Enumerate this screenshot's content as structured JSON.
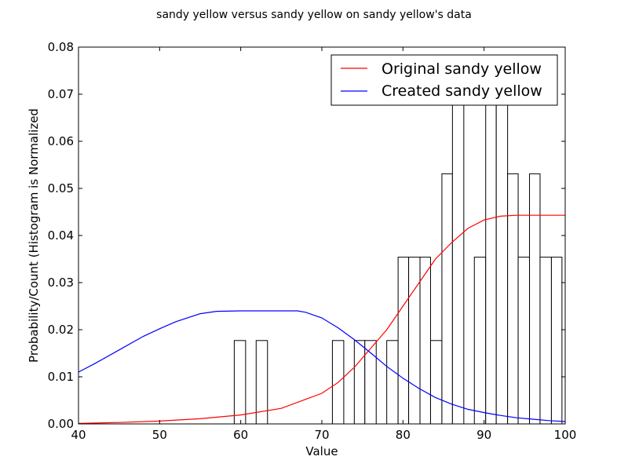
{
  "chart_data": {
    "type": "histogram+line",
    "title": "sandy yellow versus sandy yellow on sandy yellow's data",
    "xlabel": "Value",
    "ylabel": "Probability/Count (Histogram is Normalized",
    "xlim": [
      40,
      100
    ],
    "ylim": [
      0,
      0.08
    ],
    "x_ticks": [
      "40",
      "50",
      "60",
      "70",
      "80",
      "90",
      "100"
    ],
    "y_ticks": [
      "0.00",
      "0.01",
      "0.02",
      "0.03",
      "0.04",
      "0.05",
      "0.06",
      "0.07",
      "0.08"
    ],
    "grid": false,
    "legend_position": "top-right",
    "histogram": {
      "name": "histogram",
      "color": "#000000",
      "fill": "#ffffff",
      "bins": [
        {
          "x0": 59.2,
          "x1": 60.6,
          "value": 0.0177
        },
        {
          "x0": 61.9,
          "x1": 63.3,
          "value": 0.0177
        },
        {
          "x0": 71.3,
          "x1": 72.7,
          "value": 0.0177
        },
        {
          "x0": 74.0,
          "x1": 75.3,
          "value": 0.0177
        },
        {
          "x0": 75.3,
          "x1": 76.7,
          "value": 0.0177
        },
        {
          "x0": 78.0,
          "x1": 79.4,
          "value": 0.0177
        },
        {
          "x0": 79.4,
          "x1": 80.7,
          "value": 0.0354
        },
        {
          "x0": 80.7,
          "x1": 82.1,
          "value": 0.0354
        },
        {
          "x0": 82.1,
          "x1": 83.4,
          "value": 0.0354
        },
        {
          "x0": 83.4,
          "x1": 84.8,
          "value": 0.0177
        },
        {
          "x0": 84.8,
          "x1": 86.1,
          "value": 0.0531
        },
        {
          "x0": 86.1,
          "x1": 87.5,
          "value": 0.0708
        },
        {
          "x0": 88.8,
          "x1": 90.2,
          "value": 0.0354
        },
        {
          "x0": 90.2,
          "x1": 91.5,
          "value": 0.0708
        },
        {
          "x0": 91.5,
          "x1": 92.9,
          "value": 0.0708
        },
        {
          "x0": 92.9,
          "x1": 94.2,
          "value": 0.0531
        },
        {
          "x0": 94.2,
          "x1": 95.6,
          "value": 0.0354
        },
        {
          "x0": 95.6,
          "x1": 96.9,
          "value": 0.0531
        },
        {
          "x0": 96.9,
          "x1": 98.3,
          "value": 0.0354
        },
        {
          "x0": 98.3,
          "x1": 99.6,
          "value": 0.0354
        }
      ]
    },
    "series": [
      {
        "name": "Original sandy yellow",
        "color": "#ff0000",
        "x": [
          40,
          45,
          50,
          55,
          60,
          65,
          70,
          72,
          74,
          76,
          78,
          80,
          82,
          84,
          86,
          88,
          90,
          92,
          94,
          96,
          98,
          100
        ],
        "y": [
          0.0001,
          0.0003,
          0.0006,
          0.0011,
          0.0019,
          0.0033,
          0.0065,
          0.0088,
          0.012,
          0.016,
          0.02,
          0.025,
          0.03,
          0.035,
          0.0385,
          0.0415,
          0.0433,
          0.0441,
          0.0443,
          0.0443,
          0.0443,
          0.0443
        ]
      },
      {
        "name": "Created sandy yellow",
        "color": "#0000ff",
        "x": [
          40,
          42,
          45,
          48,
          50,
          52,
          55,
          57,
          60,
          62,
          65,
          67,
          68,
          70,
          72,
          74,
          76,
          78,
          80,
          82,
          84,
          86,
          88,
          90,
          92,
          94,
          96,
          98,
          100
        ],
        "y": [
          0.011,
          0.0128,
          0.0157,
          0.0186,
          0.0202,
          0.0217,
          0.0234,
          0.0239,
          0.024,
          0.024,
          0.024,
          0.024,
          0.0237,
          0.0225,
          0.0204,
          0.0179,
          0.0151,
          0.0122,
          0.0097,
          0.0075,
          0.0056,
          0.0042,
          0.0031,
          0.0024,
          0.0018,
          0.0013,
          0.001,
          0.0007,
          0.0005
        ]
      }
    ]
  }
}
